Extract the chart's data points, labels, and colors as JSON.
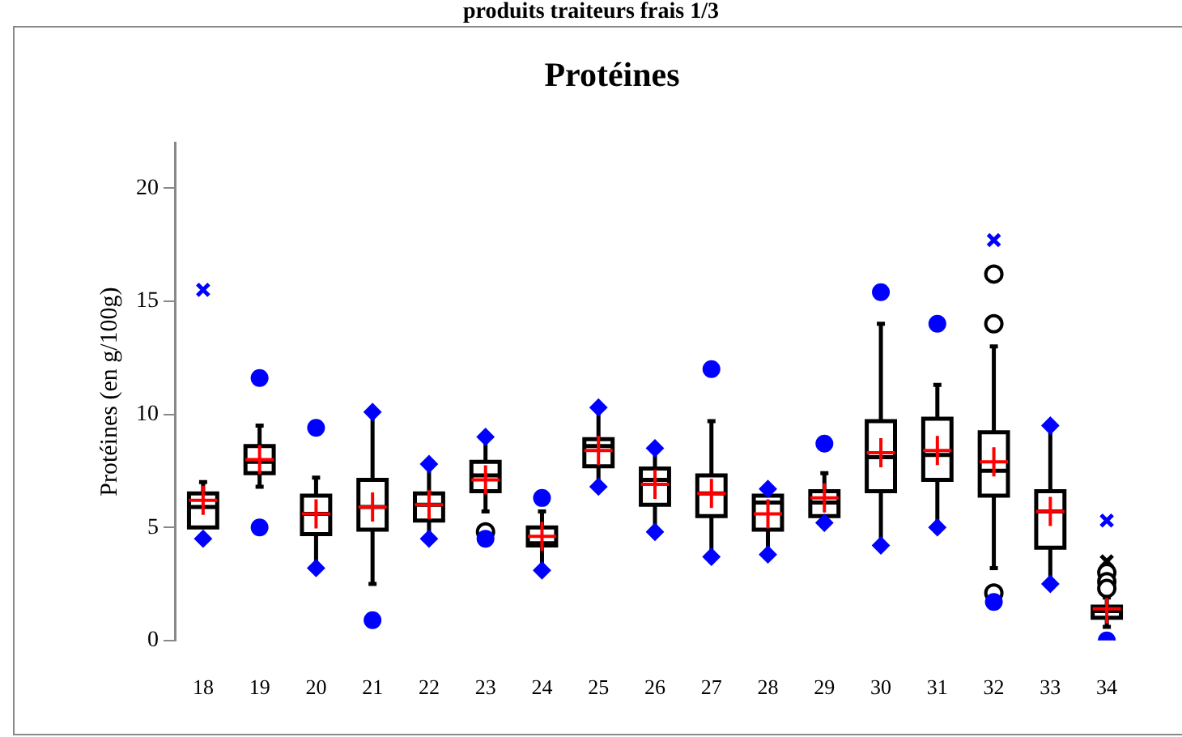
{
  "chart_data": {
    "type": "box",
    "title": "Protéines",
    "ylabel": "Protéines (en g/100g)",
    "annotations": [
      "produits traiteurs frais 1/3"
    ],
    "categories": [
      "18",
      "19",
      "20",
      "21",
      "22",
      "23",
      "24",
      "25",
      "26",
      "27",
      "28",
      "29",
      "30",
      "31",
      "32",
      "33",
      "34"
    ],
    "ylim": [
      0,
      22
    ],
    "yticks": [
      0,
      5,
      10,
      15,
      20
    ],
    "grid": false,
    "legend": false,
    "series": [
      {
        "color": "#000000",
        "boxes": [
          {
            "low": 5.0,
            "q1": 5.0,
            "median": 5.9,
            "q3": 6.5,
            "high": 7.0,
            "mean": 6.2
          },
          {
            "low": 6.8,
            "q1": 7.4,
            "median": 7.9,
            "q3": 8.6,
            "high": 9.5,
            "mean": 8.0
          },
          {
            "low": 3.2,
            "q1": 4.7,
            "median": 5.6,
            "q3": 6.4,
            "high": 7.2,
            "mean": 5.6
          },
          {
            "low": 2.5,
            "q1": 4.9,
            "median": 5.9,
            "q3": 7.1,
            "high": 10.1,
            "mean": 5.9
          },
          {
            "low": 4.5,
            "q1": 5.3,
            "median": 6.0,
            "q3": 6.5,
            "high": 7.8,
            "mean": 6.0
          },
          {
            "low": 5.7,
            "q1": 6.6,
            "median": 7.3,
            "q3": 7.9,
            "high": 9.0,
            "mean": 7.1
          },
          {
            "low": 3.1,
            "q1": 4.2,
            "median": 4.3,
            "q3": 5.0,
            "high": 5.7,
            "mean": 4.6
          },
          {
            "low": 6.8,
            "q1": 7.7,
            "median": 8.6,
            "q3": 8.9,
            "high": 10.3,
            "mean": 8.4
          },
          {
            "low": 4.8,
            "q1": 6.0,
            "median": 7.1,
            "q3": 7.6,
            "high": 8.5,
            "mean": 6.9
          },
          {
            "low": 3.7,
            "q1": 5.5,
            "median": 6.5,
            "q3": 7.3,
            "high": 9.7,
            "mean": 6.5
          },
          {
            "low": 3.8,
            "q1": 4.9,
            "median": 6.1,
            "q3": 6.4,
            "high": 6.7,
            "mean": 5.6
          },
          {
            "low": 5.2,
            "q1": 5.5,
            "median": 6.1,
            "q3": 6.6,
            "high": 7.4,
            "mean": 6.3
          },
          {
            "low": 4.2,
            "q1": 6.6,
            "median": 8.1,
            "q3": 9.7,
            "high": 14.0,
            "mean": 8.3
          },
          {
            "low": 5.0,
            "q1": 7.1,
            "median": 8.2,
            "q3": 9.8,
            "high": 11.3,
            "mean": 8.4
          },
          {
            "low": 3.2,
            "q1": 6.4,
            "median": 7.5,
            "q3": 9.2,
            "high": 13.0,
            "mean": 7.9
          },
          {
            "low": 2.5,
            "q1": 4.1,
            "median": 5.7,
            "q3": 6.6,
            "high": 9.5,
            "mean": 5.7
          },
          {
            "low": 0.6,
            "q1": 1.0,
            "median": 1.3,
            "q3": 1.5,
            "high": 1.9,
            "mean": 1.4
          }
        ]
      },
      {
        "type": "scatter",
        "marker": "diamond",
        "color": "#0000ff",
        "x": [
          "18",
          "20",
          "21",
          "22",
          "22",
          "23",
          "24",
          "25",
          "25",
          "26",
          "26",
          "27",
          "28",
          "28",
          "29",
          "30",
          "31",
          "33",
          "33"
        ],
        "values": [
          4.5,
          3.2,
          10.1,
          7.8,
          4.5,
          9.0,
          3.1,
          10.3,
          6.8,
          8.5,
          4.8,
          3.7,
          6.7,
          3.8,
          5.2,
          4.2,
          5.0,
          9.5,
          2.5
        ]
      },
      {
        "type": "scatter",
        "marker": "circle",
        "color": "#0000ff",
        "x": [
          "19",
          "19",
          "20",
          "21",
          "23",
          "24",
          "27",
          "29",
          "30",
          "31",
          "32",
          "34"
        ],
        "values": [
          11.6,
          5.0,
          9.4,
          0.9,
          4.5,
          6.3,
          12.0,
          8.7,
          15.4,
          14.0,
          1.7,
          0
        ]
      },
      {
        "type": "scatter",
        "marker": "cross",
        "color": "#0000ff",
        "x": [
          "18",
          "32",
          "34"
        ],
        "values": [
          15.5,
          17.7,
          5.3
        ]
      },
      {
        "type": "scatter",
        "marker": "circle",
        "color": "#000000",
        "x": [
          "23",
          "32",
          "32",
          "32",
          "34",
          "34",
          "34"
        ],
        "values": [
          4.8,
          16.2,
          14.0,
          2.1,
          3.0,
          2.6,
          2.3
        ]
      },
      {
        "type": "scatter",
        "marker": "cross",
        "color": "#000000",
        "x": [
          "34"
        ],
        "values": [
          3.5
        ]
      }
    ]
  }
}
